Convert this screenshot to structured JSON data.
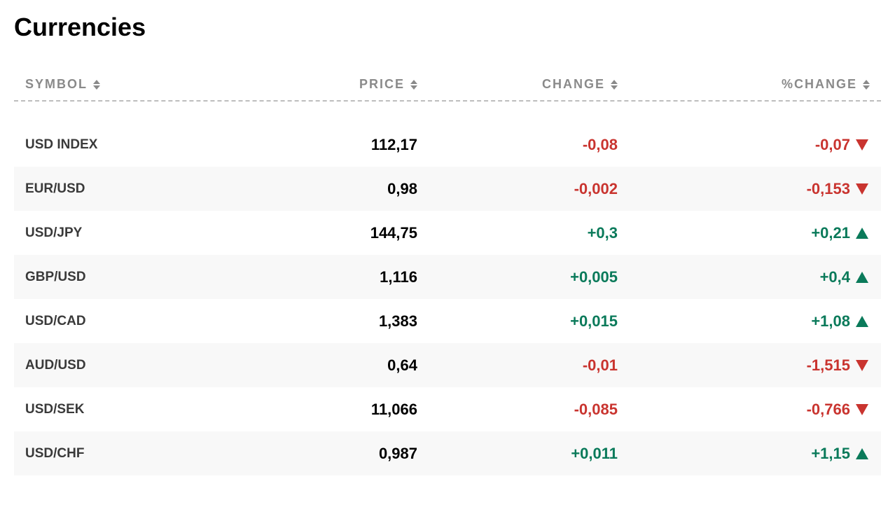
{
  "title": "Currencies",
  "columns": {
    "symbol": "SYMBOL",
    "price": "PRICE",
    "change": "CHANGE",
    "pct_change": "%CHANGE"
  },
  "colors": {
    "positive": "#0a7a5a",
    "negative": "#c9342f",
    "header_text": "#8a8a8a",
    "divider": "#bdbdbd",
    "alt_row_bg": "#f8f8f8",
    "price_text": "#000000",
    "symbol_text": "#3a3a3a"
  },
  "rows": [
    {
      "symbol": "USD INDEX",
      "price": "112,17",
      "change": "-0,08",
      "pct_change": "-0,07",
      "direction": "down"
    },
    {
      "symbol": "EUR/USD",
      "price": "0,98",
      "change": "-0,002",
      "pct_change": "-0,153",
      "direction": "down"
    },
    {
      "symbol": "USD/JPY",
      "price": "144,75",
      "change": "+0,3",
      "pct_change": "+0,21",
      "direction": "up"
    },
    {
      "symbol": "GBP/USD",
      "price": "1,116",
      "change": "+0,005",
      "pct_change": "+0,4",
      "direction": "up"
    },
    {
      "symbol": "USD/CAD",
      "price": "1,383",
      "change": "+0,015",
      "pct_change": "+1,08",
      "direction": "up"
    },
    {
      "symbol": "AUD/USD",
      "price": "0,64",
      "change": "-0,01",
      "pct_change": "-1,515",
      "direction": "down"
    },
    {
      "symbol": "USD/SEK",
      "price": "11,066",
      "change": "-0,085",
      "pct_change": "-0,766",
      "direction": "down"
    },
    {
      "symbol": "USD/CHF",
      "price": "0,987",
      "change": "+0,011",
      "pct_change": "+1,15",
      "direction": "up"
    }
  ]
}
